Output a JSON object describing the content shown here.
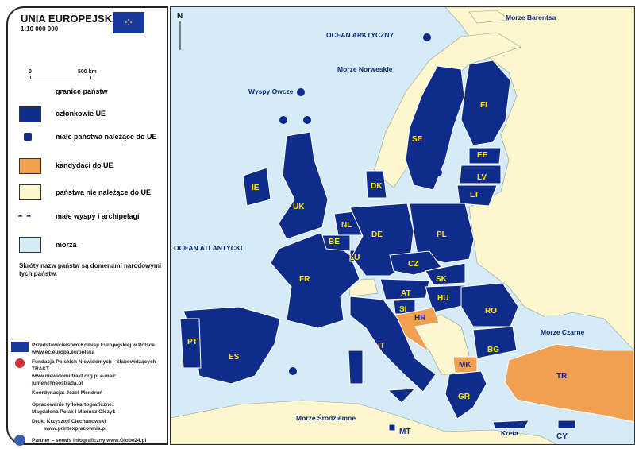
{
  "legend": {
    "title": "UNIA EUROPEJSKA",
    "scale": "1:10 000 000",
    "scalebar_start": "0",
    "scalebar_end": "500 km",
    "items": [
      {
        "label": "granice państw"
      },
      {
        "label": "członkowie UE"
      },
      {
        "label": "małe państwa należące do UE"
      },
      {
        "label": "kandydaci do UE"
      },
      {
        "label": "państwa nie należące do UE"
      },
      {
        "label": "małe wyspy i archipelagi"
      },
      {
        "label": "morza"
      }
    ],
    "note": "Skróty nazw państw są domenami narodowymi tych państw.",
    "colors": {
      "eu": "#0f2c8a",
      "candidate": "#f0a050",
      "non_eu": "#fcf7cf",
      "sea": "#d5ebf5",
      "label": "#ffe600"
    }
  },
  "credits": {
    "line1": "Przedstawicielstwo Komisji Europejskiej w Polsce",
    "line2": "www.ec.europa.eu/polska",
    "line3": "Fundacja Polskich Niewidomych i Słabowidzących TRAKT",
    "line4": "www.niewidomi.trakt.org.pl   e-mail: jumen@neostrada.pl",
    "line5": "Koordynacja: Józef Mendruń",
    "line6": "Opracowanie tyflokartograficzne:",
    "line7": "Magdalena Polak i Mariusz Olczyk",
    "line8": "Druk: Krzysztof Ciechanowski",
    "line9": "www.printexpracownia.pl",
    "line10": "Partner – serwis infograficzny www.Globe24.pl",
    "trakt_logo": "TRAKT"
  },
  "map": {
    "north": "N",
    "seas": [
      "Morze Barentsa",
      "OCEAN ARKTYCZNY",
      "Morze Norweskie",
      "Wyspy Owcze",
      "OCEAN ATLANTYCKI",
      "Morze Czarne",
      "Morze Śródziemne",
      "Kreta"
    ],
    "countries": [
      "FI",
      "SE",
      "EE",
      "LV",
      "LT",
      "DK",
      "IE",
      "UK",
      "NL",
      "BE",
      "LU",
      "DE",
      "PL",
      "CZ",
      "SK",
      "AT",
      "HU",
      "SI",
      "HR",
      "RO",
      "BG",
      "MK",
      "GR",
      "TR",
      "CY",
      "FR",
      "PT",
      "ES",
      "IT",
      "MT"
    ]
  }
}
